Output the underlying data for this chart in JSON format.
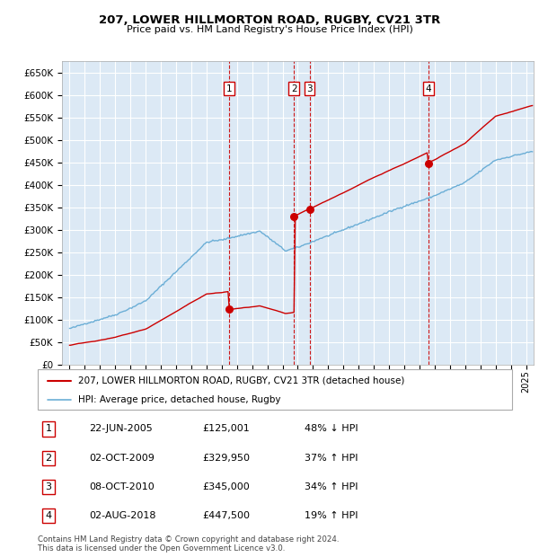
{
  "title": "207, LOWER HILLMORTON ROAD, RUGBY, CV21 3TR",
  "subtitle": "Price paid vs. HM Land Registry's House Price Index (HPI)",
  "legend_line1": "207, LOWER HILLMORTON ROAD, RUGBY, CV21 3TR (detached house)",
  "legend_line2": "HPI: Average price, detached house, Rugby",
  "footer": "Contains HM Land Registry data © Crown copyright and database right 2024.\nThis data is licensed under the Open Government Licence v3.0.",
  "transactions": [
    {
      "num": 1,
      "date": "22-JUN-2005",
      "price": 125001,
      "price_fmt": "£125,001",
      "pct": "48%",
      "dir": "↓",
      "year": 2005.47
    },
    {
      "num": 2,
      "date": "02-OCT-2009",
      "price": 329950,
      "price_fmt": "£329,950",
      "pct": "37%",
      "dir": "↑",
      "year": 2009.75
    },
    {
      "num": 3,
      "date": "08-OCT-2010",
      "price": 345000,
      "price_fmt": "£345,000",
      "pct": "34%",
      "dir": "↑",
      "year": 2010.77
    },
    {
      "num": 4,
      "date": "02-AUG-2018",
      "price": 447500,
      "price_fmt": "£447,500",
      "pct": "19%",
      "dir": "↑",
      "year": 2018.58
    }
  ],
  "hpi_color": "#6baed6",
  "price_color": "#cc0000",
  "dashed_color": "#cc0000",
  "plot_bg_color": "#dce9f5",
  "ylim": [
    0,
    675000
  ],
  "yticks": [
    0,
    50000,
    100000,
    150000,
    200000,
    250000,
    300000,
    350000,
    400000,
    450000,
    500000,
    550000,
    600000,
    650000
  ],
  "xlim_start": 1994.5,
  "xlim_end": 2025.5
}
